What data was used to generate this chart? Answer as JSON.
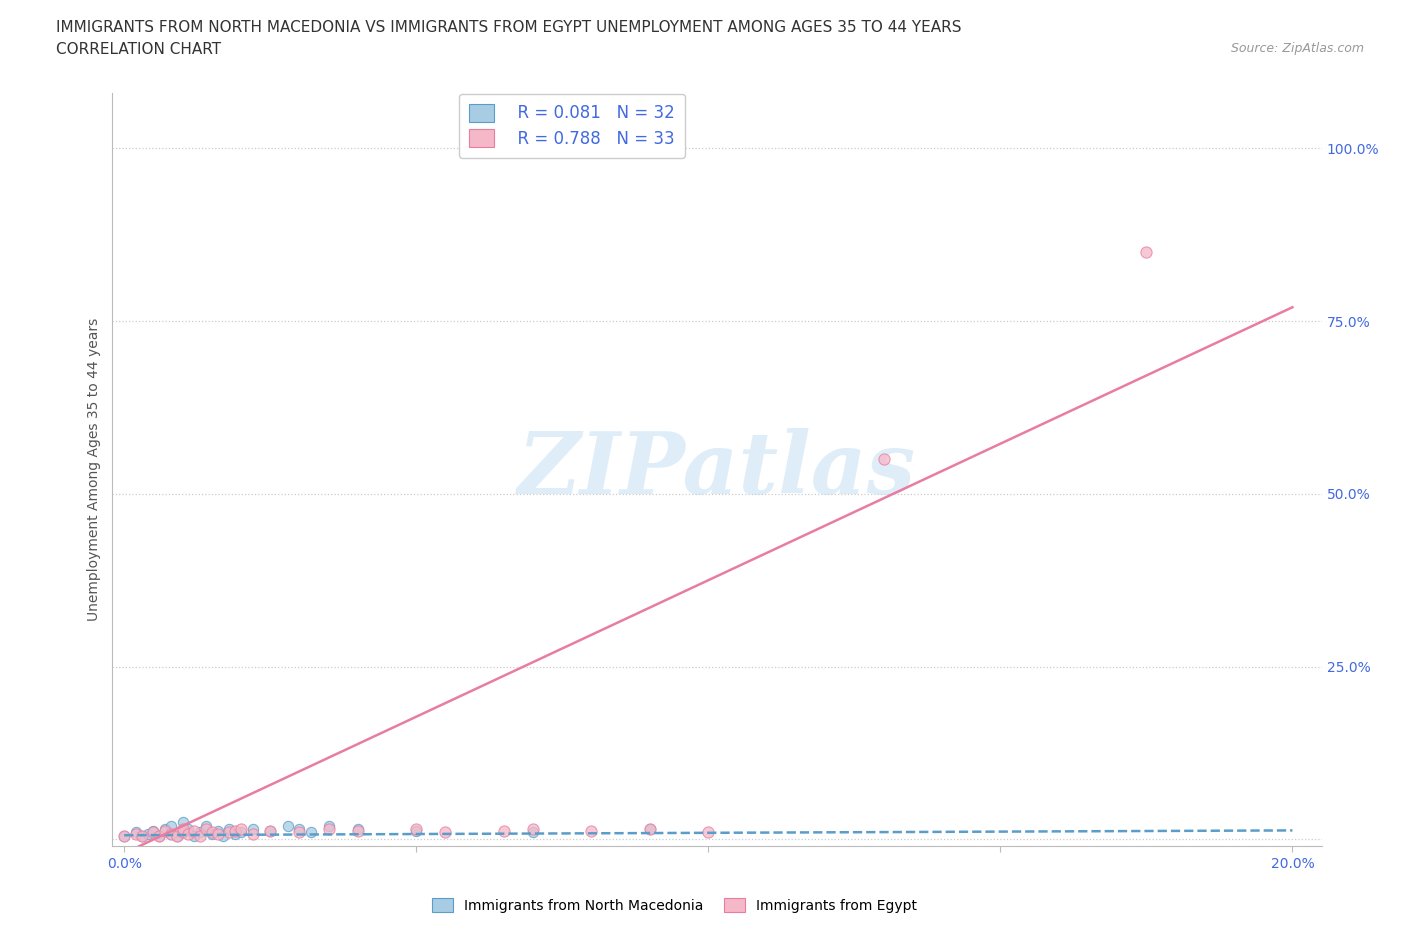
{
  "title_line1": "IMMIGRANTS FROM NORTH MACEDONIA VS IMMIGRANTS FROM EGYPT UNEMPLOYMENT AMONG AGES 35 TO 44 YEARS",
  "title_line2": "CORRELATION CHART",
  "source_text": "Source: ZipAtlas.com",
  "ylabel": "Unemployment Among Ages 35 to 44 years",
  "x_ticks": [
    0.0,
    0.05,
    0.1,
    0.15,
    0.2
  ],
  "y_ticks": [
    0.0,
    0.25,
    0.5,
    0.75,
    1.0
  ],
  "xlim": [
    -0.002,
    0.205
  ],
  "ylim": [
    -0.01,
    1.08
  ],
  "blue_color": "#a8cce4",
  "pink_color": "#f5b8c8",
  "blue_edge_color": "#5b9dc9",
  "pink_edge_color": "#e87da0",
  "blue_line_color": "#5b9dc9",
  "pink_line_color": "#e87da0",
  "watermark": "ZIPatlas",
  "legend_r1": "R = 0.081",
  "legend_n1": "N = 32",
  "legend_r2": "R = 0.788",
  "legend_n2": "N = 33",
  "blue_scatter_x": [
    0.0,
    0.002,
    0.003,
    0.004,
    0.005,
    0.006,
    0.007,
    0.008,
    0.008,
    0.009,
    0.01,
    0.01,
    0.011,
    0.012,
    0.013,
    0.014,
    0.015,
    0.016,
    0.017,
    0.018,
    0.019,
    0.02,
    0.022,
    0.025,
    0.028,
    0.03,
    0.032,
    0.035,
    0.04,
    0.05,
    0.07,
    0.09
  ],
  "blue_scatter_y": [
    0.005,
    0.01,
    0.005,
    0.008,
    0.012,
    0.005,
    0.015,
    0.008,
    0.02,
    0.005,
    0.01,
    0.025,
    0.015,
    0.005,
    0.01,
    0.02,
    0.008,
    0.012,
    0.005,
    0.015,
    0.008,
    0.01,
    0.015,
    0.012,
    0.02,
    0.015,
    0.01,
    0.02,
    0.015,
    0.012,
    0.01,
    0.015
  ],
  "pink_scatter_x": [
    0.0,
    0.002,
    0.003,
    0.005,
    0.006,
    0.007,
    0.008,
    0.009,
    0.01,
    0.01,
    0.011,
    0.012,
    0.013,
    0.014,
    0.015,
    0.016,
    0.018,
    0.019,
    0.02,
    0.022,
    0.025,
    0.03,
    0.035,
    0.04,
    0.05,
    0.055,
    0.065,
    0.07,
    0.08,
    0.09,
    0.1,
    0.13,
    0.175
  ],
  "pink_scatter_y": [
    0.005,
    0.008,
    0.005,
    0.01,
    0.005,
    0.012,
    0.008,
    0.005,
    0.01,
    0.015,
    0.008,
    0.012,
    0.005,
    0.015,
    0.01,
    0.008,
    0.01,
    0.012,
    0.015,
    0.008,
    0.012,
    0.01,
    0.015,
    0.012,
    0.015,
    0.01,
    0.012,
    0.015,
    0.012,
    0.015,
    0.01,
    0.55,
    0.85
  ],
  "blue_trend_x": [
    0.0,
    0.2
  ],
  "blue_trend_y": [
    0.006,
    0.013
  ],
  "pink_trend_x": [
    0.0,
    0.2
  ],
  "pink_trend_y": [
    -0.02,
    0.77
  ],
  "background_color": "#ffffff",
  "grid_color": "#cccccc",
  "tick_color": "#4169e1",
  "label_color": "#555555"
}
